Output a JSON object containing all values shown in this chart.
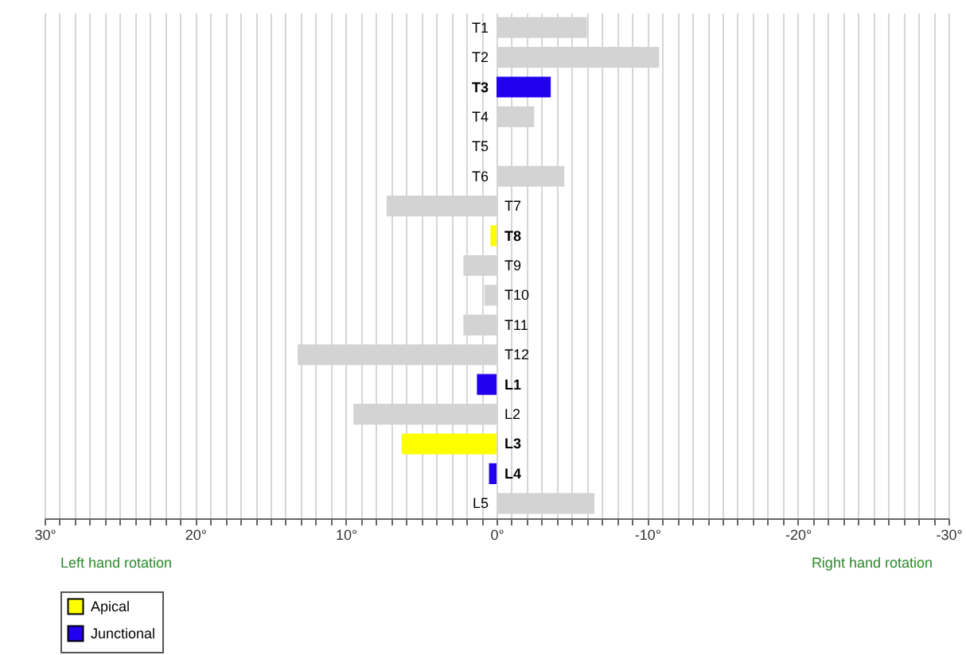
{
  "chart_data": {
    "type": "bar",
    "orientation": "horizontal",
    "categories": [
      "T1",
      "T2",
      "T3",
      "T4",
      "T5",
      "T6",
      "T7",
      "T8",
      "T9",
      "T10",
      "T11",
      "T12",
      "L1",
      "L2",
      "L3",
      "L4",
      "L5"
    ],
    "series": [
      {
        "color": "#d3d3d3",
        "values": [
          -6,
          -10.8,
          null,
          -2.5,
          0,
          -4.5,
          7.3,
          null,
          2.2,
          0.8,
          2.2,
          13.2,
          null,
          9.5,
          null,
          null,
          -6.5
        ]
      },
      {
        "name": "Apical",
        "color": "#ffff00",
        "values": [
          null,
          null,
          null,
          null,
          null,
          null,
          null,
          0.4,
          null,
          null,
          null,
          null,
          null,
          null,
          6.3,
          null,
          null
        ]
      },
      {
        "name": "Junctional",
        "color": "#2200ee",
        "values": [
          null,
          null,
          -3.6,
          null,
          null,
          null,
          null,
          null,
          null,
          null,
          null,
          null,
          1.3,
          null,
          null,
          0.5,
          null
        ]
      }
    ],
    "xlim": [
      30,
      -30
    ],
    "xticks": [
      {
        "value": 30,
        "label": "30°"
      },
      {
        "value": 29,
        "label": null
      },
      {
        "value": 28,
        "label": null
      },
      {
        "value": 27,
        "label": null
      },
      {
        "value": 26,
        "label": null
      },
      {
        "value": 25,
        "label": null
      },
      {
        "value": 24,
        "label": null
      },
      {
        "value": 23,
        "label": null
      },
      {
        "value": 22,
        "label": null
      },
      {
        "value": 21,
        "label": null
      },
      {
        "value": 20,
        "label": "20°"
      },
      {
        "value": 19,
        "label": null
      },
      {
        "value": 18,
        "label": null
      },
      {
        "value": 17,
        "label": null
      },
      {
        "value": 16,
        "label": null
      },
      {
        "value": 15,
        "label": null
      },
      {
        "value": 14,
        "label": null
      },
      {
        "value": 13,
        "label": null
      },
      {
        "value": 12,
        "label": null
      },
      {
        "value": 11,
        "label": null
      },
      {
        "value": 10,
        "label": "10°"
      },
      {
        "value": 9,
        "label": null
      },
      {
        "value": 8,
        "label": null
      },
      {
        "value": 7,
        "label": null
      },
      {
        "value": 6,
        "label": null
      },
      {
        "value": 5,
        "label": null
      },
      {
        "value": 4,
        "label": null
      },
      {
        "value": 3,
        "label": null
      },
      {
        "value": 2,
        "label": null
      },
      {
        "value": 1,
        "label": null
      },
      {
        "value": 0,
        "label": "0°"
      },
      {
        "value": -1,
        "label": null
      },
      {
        "value": -2,
        "label": null
      },
      {
        "value": -3,
        "label": null
      },
      {
        "value": -4,
        "label": null
      },
      {
        "value": -5,
        "label": null
      },
      {
        "value": -6,
        "label": null
      },
      {
        "value": -7,
        "label": null
      },
      {
        "value": -8,
        "label": null
      },
      {
        "value": -9,
        "label": null
      },
      {
        "value": -10,
        "label": "-10°"
      },
      {
        "value": -11,
        "label": null
      },
      {
        "value": -12,
        "label": null
      },
      {
        "value": -13,
        "label": null
      },
      {
        "value": -14,
        "label": null
      },
      {
        "value": -15,
        "label": null
      },
      {
        "value": -16,
        "label": null
      },
      {
        "value": -17,
        "label": null
      },
      {
        "value": -18,
        "label": null
      },
      {
        "value": -19,
        "label": null
      },
      {
        "value": -20,
        "label": "-20°"
      },
      {
        "value": -21,
        "label": null
      },
      {
        "value": -22,
        "label": null
      },
      {
        "value": -23,
        "label": null
      },
      {
        "value": -24,
        "label": null
      },
      {
        "value": -25,
        "label": null
      },
      {
        "value": -26,
        "label": null
      },
      {
        "value": -27,
        "label": null
      },
      {
        "value": -28,
        "label": null
      },
      {
        "value": -29,
        "label": null
      },
      {
        "value": -30,
        "label": "-30°"
      }
    ],
    "grid": "x",
    "legend": "bottom left",
    "annotations": [
      "Left hand rotation",
      "Right hand rotation"
    ]
  }
}
